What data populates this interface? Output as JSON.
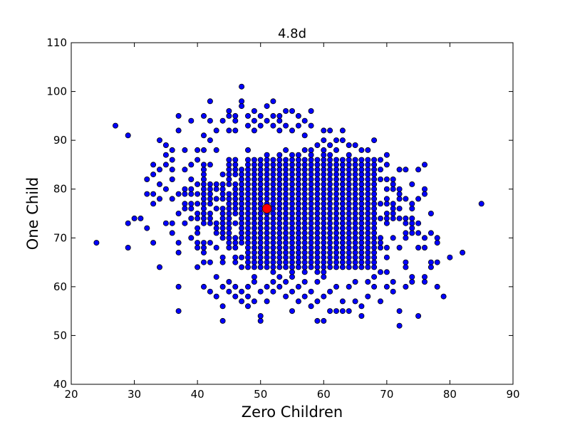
{
  "chart_data": {
    "type": "scatter",
    "title": "4.8d",
    "xlabel": "Zero Children",
    "ylabel": "One Child",
    "xlim": [
      20,
      90
    ],
    "ylim": [
      40,
      110
    ],
    "xticks": [
      20,
      30,
      40,
      50,
      60,
      70,
      80,
      90
    ],
    "yticks": [
      40,
      50,
      60,
      70,
      80,
      90,
      100,
      110
    ],
    "grid": false,
    "marker_color": "#0000ff",
    "highlight_color": "#ff0000",
    "cloud": {
      "x_range": [
        37,
        74
      ],
      "y_range": [
        62,
        88
      ],
      "core": [
        48,
        68,
        64,
        86
      ],
      "step": 1
    },
    "series": [
      {
        "name": "",
        "points": [
          [
            24,
            69
          ],
          [
            27,
            93
          ],
          [
            29,
            91
          ],
          [
            29,
            73
          ],
          [
            29,
            68
          ],
          [
            30,
            74
          ],
          [
            31,
            74
          ],
          [
            32,
            82
          ],
          [
            32,
            79
          ],
          [
            32,
            72
          ],
          [
            33,
            85
          ],
          [
            33,
            83
          ],
          [
            33,
            79
          ],
          [
            33,
            77
          ],
          [
            33,
            69
          ],
          [
            34,
            90
          ],
          [
            34,
            64
          ],
          [
            34,
            84
          ],
          [
            34,
            81
          ],
          [
            34,
            78
          ],
          [
            35,
            89
          ],
          [
            35,
            87
          ],
          [
            35,
            85
          ],
          [
            35,
            80
          ],
          [
            35,
            73
          ],
          [
            36,
            88
          ],
          [
            36,
            86
          ],
          [
            36,
            84
          ],
          [
            36,
            82
          ],
          [
            36,
            78
          ],
          [
            36,
            73
          ],
          [
            36,
            71
          ],
          [
            37,
            95
          ],
          [
            37,
            92
          ],
          [
            37,
            60
          ],
          [
            37,
            55
          ],
          [
            37,
            69
          ],
          [
            37,
            67
          ],
          [
            38,
            88
          ],
          [
            38,
            84
          ],
          [
            38,
            80
          ],
          [
            38,
            76
          ],
          [
            39,
            94
          ],
          [
            39,
            85
          ],
          [
            39,
            82
          ],
          [
            39,
            74
          ],
          [
            39,
            70
          ],
          [
            40,
            88
          ],
          [
            40,
            86
          ],
          [
            40,
            79
          ],
          [
            40,
            68
          ],
          [
            40,
            64
          ],
          [
            41,
            95
          ],
          [
            41,
            91
          ],
          [
            41,
            88
          ],
          [
            41,
            82
          ],
          [
            41,
            65
          ],
          [
            41,
            60
          ],
          [
            42,
            98
          ],
          [
            42,
            94
          ],
          [
            42,
            90
          ],
          [
            42,
            85
          ],
          [
            42,
            59
          ],
          [
            43,
            92
          ],
          [
            43,
            88
          ],
          [
            43,
            58
          ],
          [
            43,
            62
          ],
          [
            44,
            94
          ],
          [
            44,
            56
          ],
          [
            44,
            53
          ],
          [
            44,
            60
          ],
          [
            45,
            96
          ],
          [
            45,
            95
          ],
          [
            45,
            92
          ],
          [
            45,
            59
          ],
          [
            45,
            61
          ],
          [
            46,
            95
          ],
          [
            46,
            94
          ],
          [
            46,
            92
          ],
          [
            46,
            60
          ],
          [
            46,
            58
          ],
          [
            47,
            101
          ],
          [
            47,
            98
          ],
          [
            47,
            97
          ],
          [
            47,
            57
          ],
          [
            47,
            59
          ],
          [
            48,
            95
          ],
          [
            48,
            93
          ],
          [
            48,
            56
          ],
          [
            48,
            58
          ],
          [
            48,
            60
          ],
          [
            49,
            96
          ],
          [
            49,
            94
          ],
          [
            49,
            92
          ],
          [
            49,
            57
          ],
          [
            49,
            61
          ],
          [
            50,
            95
          ],
          [
            50,
            93
          ],
          [
            50,
            54
          ],
          [
            50,
            53
          ],
          [
            50,
            59
          ],
          [
            51,
            97
          ],
          [
            51,
            94
          ],
          [
            51,
            60
          ],
          [
            51,
            57
          ],
          [
            52,
            98
          ],
          [
            52,
            95
          ],
          [
            52,
            93
          ],
          [
            52,
            59
          ],
          [
            52,
            61
          ],
          [
            53,
            95
          ],
          [
            53,
            94
          ],
          [
            53,
            92
          ],
          [
            53,
            60
          ],
          [
            54,
            96
          ],
          [
            54,
            93
          ],
          [
            54,
            58
          ],
          [
            54,
            61
          ],
          [
            55,
            96
          ],
          [
            55,
            92
          ],
          [
            55,
            55
          ],
          [
            55,
            59
          ],
          [
            56,
            95
          ],
          [
            56,
            93
          ],
          [
            56,
            57
          ],
          [
            56,
            60
          ],
          [
            57,
            94
          ],
          [
            57,
            91
          ],
          [
            57,
            58
          ],
          [
            57,
            61
          ],
          [
            58,
            96
          ],
          [
            58,
            93
          ],
          [
            58,
            56
          ],
          [
            58,
            59
          ],
          [
            59,
            89
          ],
          [
            59,
            53
          ],
          [
            59,
            57
          ],
          [
            59,
            61
          ],
          [
            60,
            92
          ],
          [
            60,
            90
          ],
          [
            60,
            53
          ],
          [
            60,
            58
          ],
          [
            61,
            92
          ],
          [
            61,
            89
          ],
          [
            61,
            55
          ],
          [
            61,
            59
          ],
          [
            62,
            90
          ],
          [
            62,
            88
          ],
          [
            62,
            55
          ],
          [
            62,
            60
          ],
          [
            63,
            92
          ],
          [
            63,
            90
          ],
          [
            63,
            55
          ],
          [
            63,
            57
          ],
          [
            64,
            89
          ],
          [
            64,
            87
          ],
          [
            64,
            55
          ],
          [
            64,
            60
          ],
          [
            65,
            89
          ],
          [
            65,
            85
          ],
          [
            65,
            57
          ],
          [
            65,
            61
          ],
          [
            66,
            88
          ],
          [
            66,
            85
          ],
          [
            66,
            54
          ],
          [
            66,
            56
          ],
          [
            67,
            88
          ],
          [
            67,
            83
          ],
          [
            67,
            58
          ],
          [
            67,
            61
          ],
          [
            68,
            90
          ],
          [
            68,
            84
          ],
          [
            68,
            60
          ],
          [
            68,
            62
          ],
          [
            69,
            86
          ],
          [
            69,
            84
          ],
          [
            69,
            57
          ],
          [
            69,
            63
          ],
          [
            70,
            87
          ],
          [
            70,
            85
          ],
          [
            70,
            63
          ],
          [
            70,
            60
          ],
          [
            71,
            82
          ],
          [
            71,
            80
          ],
          [
            71,
            59
          ],
          [
            71,
            61
          ],
          [
            72,
            84
          ],
          [
            72,
            80
          ],
          [
            72,
            55
          ],
          [
            72,
            52
          ],
          [
            72,
            74
          ],
          [
            72,
            68
          ],
          [
            73,
            84
          ],
          [
            73,
            78
          ],
          [
            73,
            65
          ],
          [
            73,
            60
          ],
          [
            73,
            64
          ],
          [
            74,
            81
          ],
          [
            74,
            77
          ],
          [
            74,
            73
          ],
          [
            74,
            72
          ],
          [
            74,
            62
          ],
          [
            74,
            61
          ],
          [
            75,
            84
          ],
          [
            75,
            78
          ],
          [
            75,
            73
          ],
          [
            75,
            71
          ],
          [
            75,
            68
          ],
          [
            75,
            54
          ],
          [
            76,
            85
          ],
          [
            76,
            80
          ],
          [
            76,
            79
          ],
          [
            76,
            70
          ],
          [
            76,
            68
          ],
          [
            76,
            62
          ],
          [
            76,
            61
          ],
          [
            77,
            75
          ],
          [
            77,
            71
          ],
          [
            77,
            64
          ],
          [
            77,
            65
          ],
          [
            78,
            70
          ],
          [
            78,
            69
          ],
          [
            78,
            65
          ],
          [
            78,
            60
          ],
          [
            79,
            58
          ],
          [
            80,
            66
          ],
          [
            82,
            67
          ],
          [
            85,
            77
          ]
        ]
      },
      {
        "name": "",
        "highlight": true,
        "points": [
          [
            51,
            76
          ]
        ]
      }
    ]
  }
}
